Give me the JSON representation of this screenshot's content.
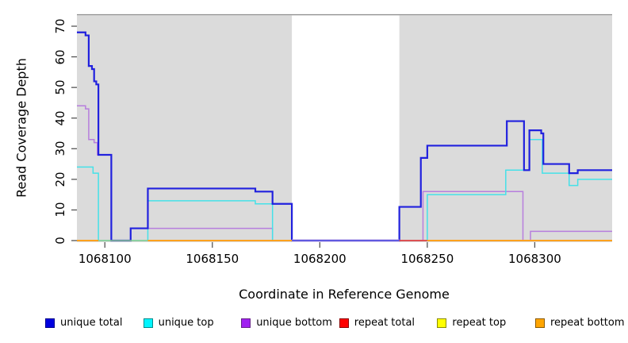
{
  "chart_data": {
    "type": "line",
    "subtype": "step-coverage",
    "title": "",
    "xlabel": "Coordinate in Reference Genome",
    "ylabel": "Read Coverage Depth",
    "xlim": [
      1068087,
      1068336
    ],
    "ylim": [
      0,
      74
    ],
    "xticks": [
      1068100,
      1068150,
      1068200,
      1068250,
      1068300
    ],
    "yticks": [
      0,
      10,
      20,
      30,
      40,
      50,
      60,
      70
    ],
    "grid": false,
    "panel_bg": "#DBDBDB",
    "panel_top_border": "#909090",
    "tick_color": "#555555",
    "masked_region": {
      "x1": 1068187,
      "x2": 1068237,
      "color": "#FFFFFF"
    },
    "series": [
      {
        "id": "unique-bottom",
        "name": "unique bottom",
        "color": "#B77EDD",
        "width": 1.5,
        "render": true,
        "end_x": 1068336,
        "points": [
          [
            1068087,
            44
          ],
          [
            1068091,
            43
          ],
          [
            1068092.5,
            33
          ],
          [
            1068095,
            32
          ],
          [
            1068096.5,
            28
          ],
          [
            1068103,
            0
          ],
          [
            1068112,
            4
          ],
          [
            1068178,
            0
          ],
          [
            1068248,
            16
          ],
          [
            1068294.5,
            0
          ],
          [
            1068298,
            3
          ]
        ]
      },
      {
        "id": "unique-top",
        "name": "unique top",
        "color": "#45E1E8",
        "width": 1.5,
        "render": true,
        "end_x": 1068336,
        "points": [
          [
            1068087,
            24
          ],
          [
            1068094.5,
            22
          ],
          [
            1068097,
            0
          ],
          [
            1068120,
            13
          ],
          [
            1068170,
            12
          ],
          [
            1068178,
            0
          ],
          [
            1068250,
            15
          ],
          [
            1068286.5,
            23
          ],
          [
            1068297.5,
            33
          ],
          [
            1068303.5,
            22
          ],
          [
            1068316,
            18
          ],
          [
            1068320,
            20
          ]
        ]
      },
      {
        "id": "unique-total",
        "name": "unique total",
        "color": "#2121DE",
        "width": 2.2,
        "render": true,
        "end_x": 1068336,
        "points": [
          [
            1068087,
            68
          ],
          [
            1068091,
            67
          ],
          [
            1068092.5,
            57
          ],
          [
            1068094,
            56
          ],
          [
            1068095,
            52
          ],
          [
            1068096,
            51
          ],
          [
            1068097,
            28
          ],
          [
            1068103,
            0
          ],
          [
            1068112,
            4
          ],
          [
            1068120,
            17
          ],
          [
            1068170,
            16
          ],
          [
            1068178,
            12
          ],
          [
            1068187,
            0
          ],
          [
            1068237,
            11
          ],
          [
            1068247,
            27
          ],
          [
            1068250,
            31
          ],
          [
            1068287,
            39
          ],
          [
            1068295,
            23
          ],
          [
            1068297.5,
            36
          ],
          [
            1068303,
            35
          ],
          [
            1068304,
            25
          ],
          [
            1068316,
            22
          ],
          [
            1068320,
            23
          ]
        ]
      },
      {
        "id": "repeat-total",
        "name": "repeat total",
        "color": "#E84040",
        "width": 1.8,
        "render": false,
        "end_x": 1068336,
        "points": [
          [
            1068087,
            0
          ]
        ]
      },
      {
        "id": "repeat-top",
        "name": "repeat top",
        "color": "#F0F046",
        "width": 1.5,
        "render": false,
        "end_x": 1068336,
        "points": [
          [
            1068087,
            0
          ]
        ]
      },
      {
        "id": "repeat-bottom",
        "name": "repeat bottom",
        "color": "#FFA11E",
        "width": 2,
        "render": false,
        "end_x": 1068336,
        "points": [
          [
            1068087,
            0
          ]
        ]
      }
    ],
    "baseline_segments": [
      {
        "x1": 1068097,
        "x2": 1068120,
        "color": "#8CCB8C",
        "w": 1.6
      },
      {
        "x1": 1068187,
        "x2": 1068237,
        "color": "#B9A2E3",
        "w": 3
      },
      {
        "x1": 1068187,
        "x2": 1068237,
        "color": "#4343E0",
        "w": 1.6
      },
      {
        "x1": 1068237,
        "x2": 1068250,
        "color": "#E84040",
        "w": 1.8
      },
      {
        "x1": 1068087,
        "x2": 1068097,
        "color": "#FFA11E",
        "w": 2
      },
      {
        "x1": 1068120,
        "x2": 1068187,
        "color": "#FFA11E",
        "w": 2
      },
      {
        "x1": 1068250,
        "x2": 1068336,
        "color": "#FFA11E",
        "w": 2
      }
    ],
    "legend_position": "bottom"
  },
  "legend": {
    "items": [
      {
        "id": "unique-total",
        "label": "unique total",
        "fill": "#0000E0",
        "border": "#00008B"
      },
      {
        "id": "unique-top",
        "label": "unique top",
        "fill": "#00F5FF",
        "border": "#008B8B"
      },
      {
        "id": "unique-bottom",
        "label": "unique bottom",
        "fill": "#A020F0",
        "border": "#68228B"
      },
      {
        "id": "repeat-total",
        "label": "repeat total",
        "fill": "#FF0000",
        "border": "#8B0000"
      },
      {
        "id": "repeat-top",
        "label": "repeat top",
        "fill": "#FFFF00",
        "border": "#8B8B00"
      },
      {
        "id": "repeat-bottom",
        "label": "repeat bottom",
        "fill": "#FFA500",
        "border": "#8B5A00"
      }
    ]
  }
}
